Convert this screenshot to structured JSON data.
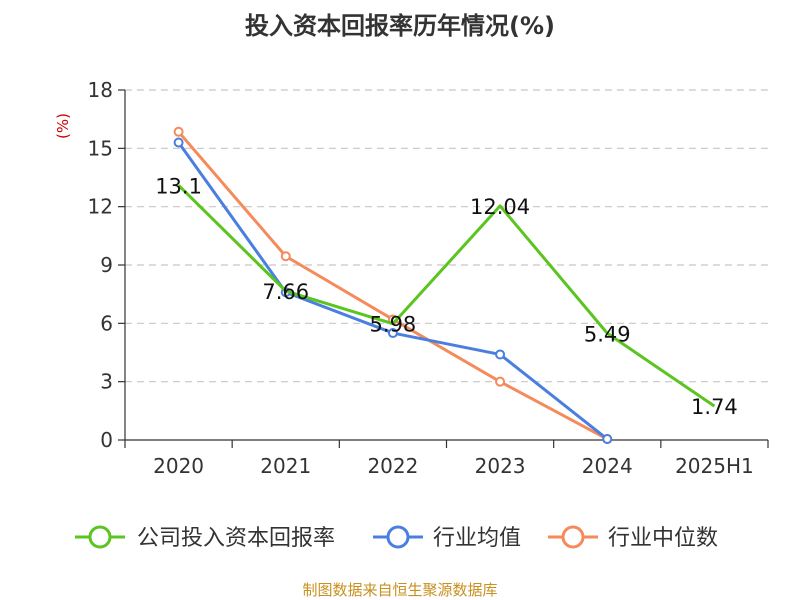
{
  "chart_data": {
    "type": "line",
    "title": "投入资本回报率历年情况(%)",
    "ylabel": "(%)",
    "categories": [
      "2020",
      "2021",
      "2022",
      "2023",
      "2024",
      "2025H1"
    ],
    "yticks": [
      "0",
      "3",
      "6",
      "9",
      "12",
      "15",
      "18"
    ],
    "ylim": [
      0,
      18
    ],
    "grid": true,
    "legend_position": "bottom",
    "series": [
      {
        "name": "公司投入资本回报率",
        "color": "#5bc41f",
        "values": [
          13.1,
          7.66,
          5.98,
          12.04,
          5.49,
          1.74
        ],
        "labels": [
          "13.1",
          "7.66",
          "5.98",
          "12.04",
          "5.49",
          "1.74"
        ]
      },
      {
        "name": "行业均值",
        "color": "#4a7fe0",
        "values": [
          15.3,
          7.6,
          5.5,
          4.4,
          0.05,
          null
        ]
      },
      {
        "name": "行业中位数",
        "color": "#f58a5a",
        "values": [
          15.85,
          9.45,
          6.2,
          3.0,
          0.05,
          null
        ]
      }
    ],
    "source": "制图数据来自恒生聚源数据库"
  }
}
